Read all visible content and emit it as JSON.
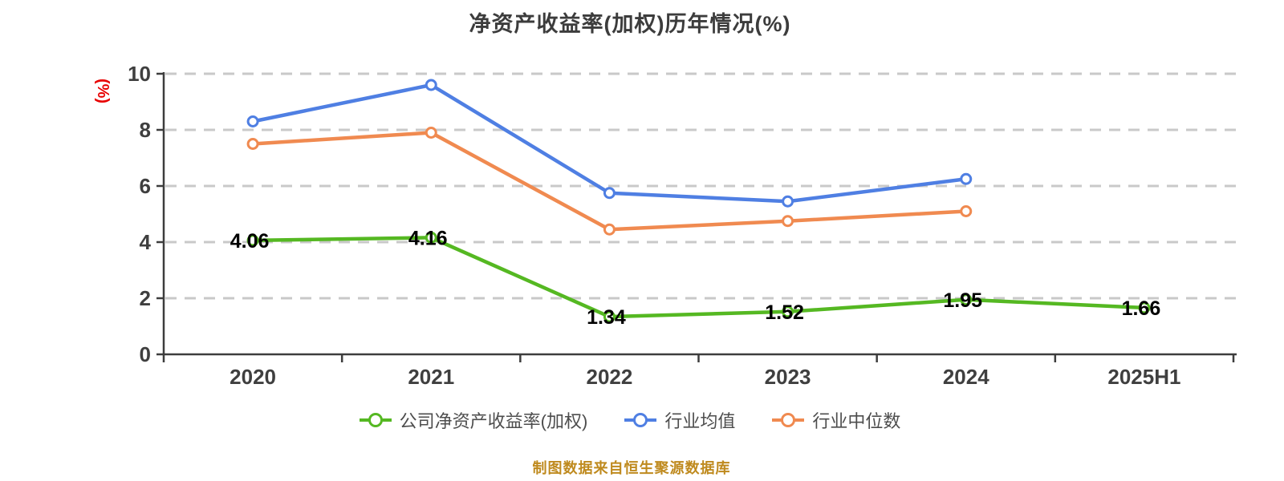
{
  "header": {
    "title": "净资产收益率(加权)历年情况(%)"
  },
  "footer": {
    "source_note": "制图数据来自恒生聚源数据库",
    "color": "#bf8a1e"
  },
  "chart_data": {
    "type": "line",
    "title": "净资产收益率(加权)历年情况(%)",
    "xlabel": "",
    "ylabel": "(%)",
    "ylabel_color": "#e80000",
    "categories": [
      "2020",
      "2021",
      "2022",
      "2023",
      "2024",
      "2025H1"
    ],
    "ylim": [
      0,
      10
    ],
    "yticks": [
      0,
      2,
      4,
      6,
      8,
      10
    ],
    "grid": "horizontal dashed",
    "legend_position": "bottom",
    "series": [
      {
        "name": "公司净资产收益率(加权)",
        "color": "#55b822",
        "values": [
          4.06,
          4.16,
          1.34,
          1.52,
          1.95,
          1.66
        ],
        "data_labels": [
          "4.06",
          "4.16",
          "1.34",
          "1.52",
          "1.95",
          "1.66"
        ]
      },
      {
        "name": "行业均值",
        "color": "#4f7fe3",
        "values": [
          8.3,
          9.6,
          5.75,
          5.45,
          6.25,
          null
        ]
      },
      {
        "name": "行业中位数",
        "color": "#f08a50",
        "values": [
          7.5,
          7.9,
          4.45,
          4.75,
          5.1,
          null
        ]
      }
    ],
    "colors": {
      "axis": "#3d3d3d",
      "gridline": "#c9c9c9",
      "tick_label": "#3f3f3f",
      "data_label": "#000000",
      "legend_text": "#4d4d4d",
      "title": "#3c3c3c",
      "marker_fill": "#ffffff"
    }
  }
}
